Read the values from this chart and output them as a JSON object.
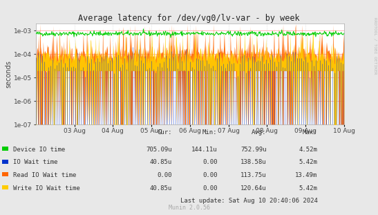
{
  "title": "Average latency for /dev/vg0/lv-var - by week",
  "ylabel": "seconds",
  "x_labels": [
    "03 Aug",
    "04 Aug",
    "05 Aug",
    "06 Aug",
    "07 Aug",
    "08 Aug",
    "09 Aug",
    "10 Aug"
  ],
  "bg_color": "#e8e8e8",
  "plot_bg_color": "#ffffff",
  "colors": {
    "device_io": "#00cc00",
    "io_wait": "#0033cc",
    "read_io_wait": "#ff6600",
    "write_io_wait": "#ffcc00"
  },
  "legend": [
    {
      "label": "Device IO time",
      "color": "#00cc00",
      "cur": "705.09u",
      "min": "144.11u",
      "avg": "752.99u",
      "max": "4.52m"
    },
    {
      "label": "IO Wait time",
      "color": "#0033cc",
      "cur": "40.85u",
      "min": "0.00",
      "avg": "138.58u",
      "max": "5.42m"
    },
    {
      "label": "Read IO Wait time",
      "color": "#ff6600",
      "cur": "0.00",
      "min": "0.00",
      "avg": "113.75u",
      "max": "13.49m"
    },
    {
      "label": "Write IO Wait time",
      "color": "#ffcc00",
      "cur": "40.85u",
      "min": "0.00",
      "avg": "120.64u",
      "max": "5.42m"
    }
  ],
  "last_update": "Last update: Sat Aug 10 20:40:06 2024",
  "munin_version": "Munin 2.0.56",
  "rrdtool_label": "RRDTOOL / TOBI OETIKER",
  "n_points": 600,
  "seed": 42
}
